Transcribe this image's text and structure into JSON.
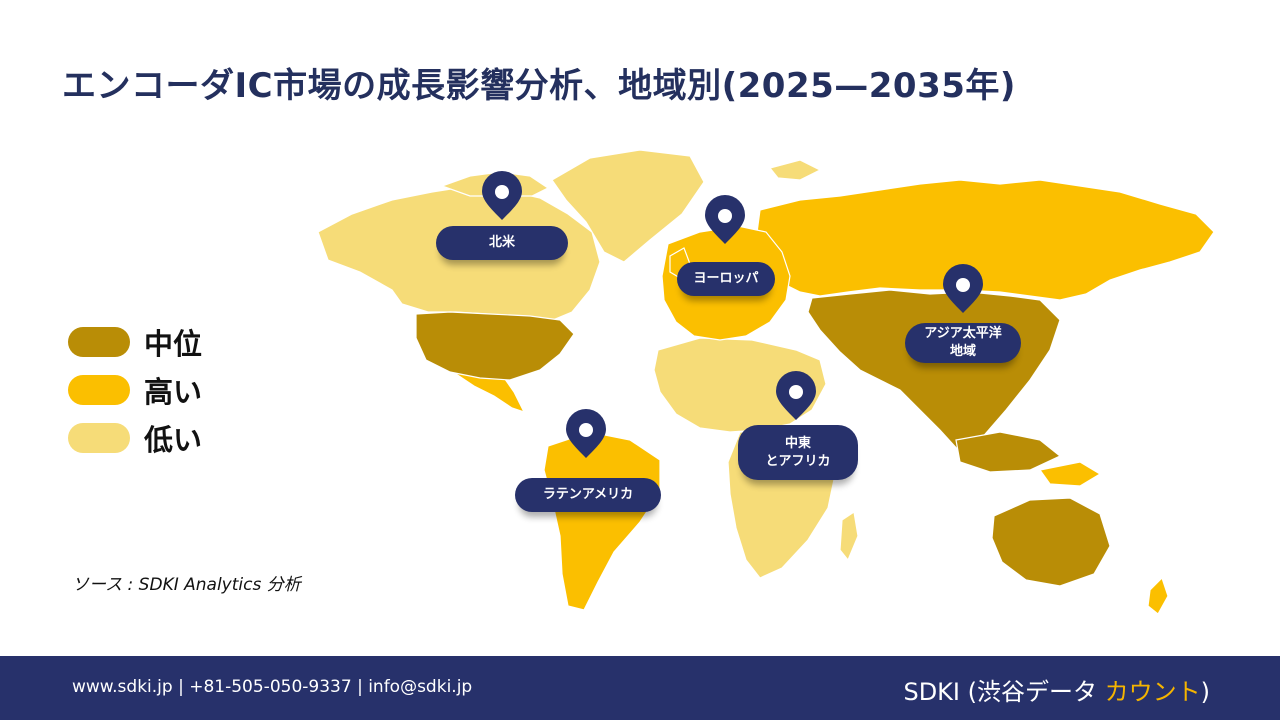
{
  "title": "エンコーダIC市場の成長影響分析、地域別(2025—2035年)",
  "legend": [
    {
      "label": "中位",
      "color": "#b98d06"
    },
    {
      "label": "高い",
      "color": "#fbbf00"
    },
    {
      "label": "低い",
      "color": "#f6dc78"
    }
  ],
  "regions": {
    "north_america": "北米",
    "europe": "ヨーロッパ",
    "asia_pacific": "アジア太平洋\n地域",
    "middle_east_africa": "中東\nとアフリカ",
    "latin_america": "ラテンアメリカ"
  },
  "source": "ソース : SDKI Analytics 分析",
  "footer": {
    "contact": "www.sdki.jp  | +81-505-050-9337 | info@sdki.jp",
    "brand_main": "SDKI (渋谷データ ",
    "brand_accent": "カウント",
    "brand_close": ")"
  },
  "colors": {
    "navy": "#27316b",
    "title": "#24305e",
    "accent": "#f5b400"
  }
}
